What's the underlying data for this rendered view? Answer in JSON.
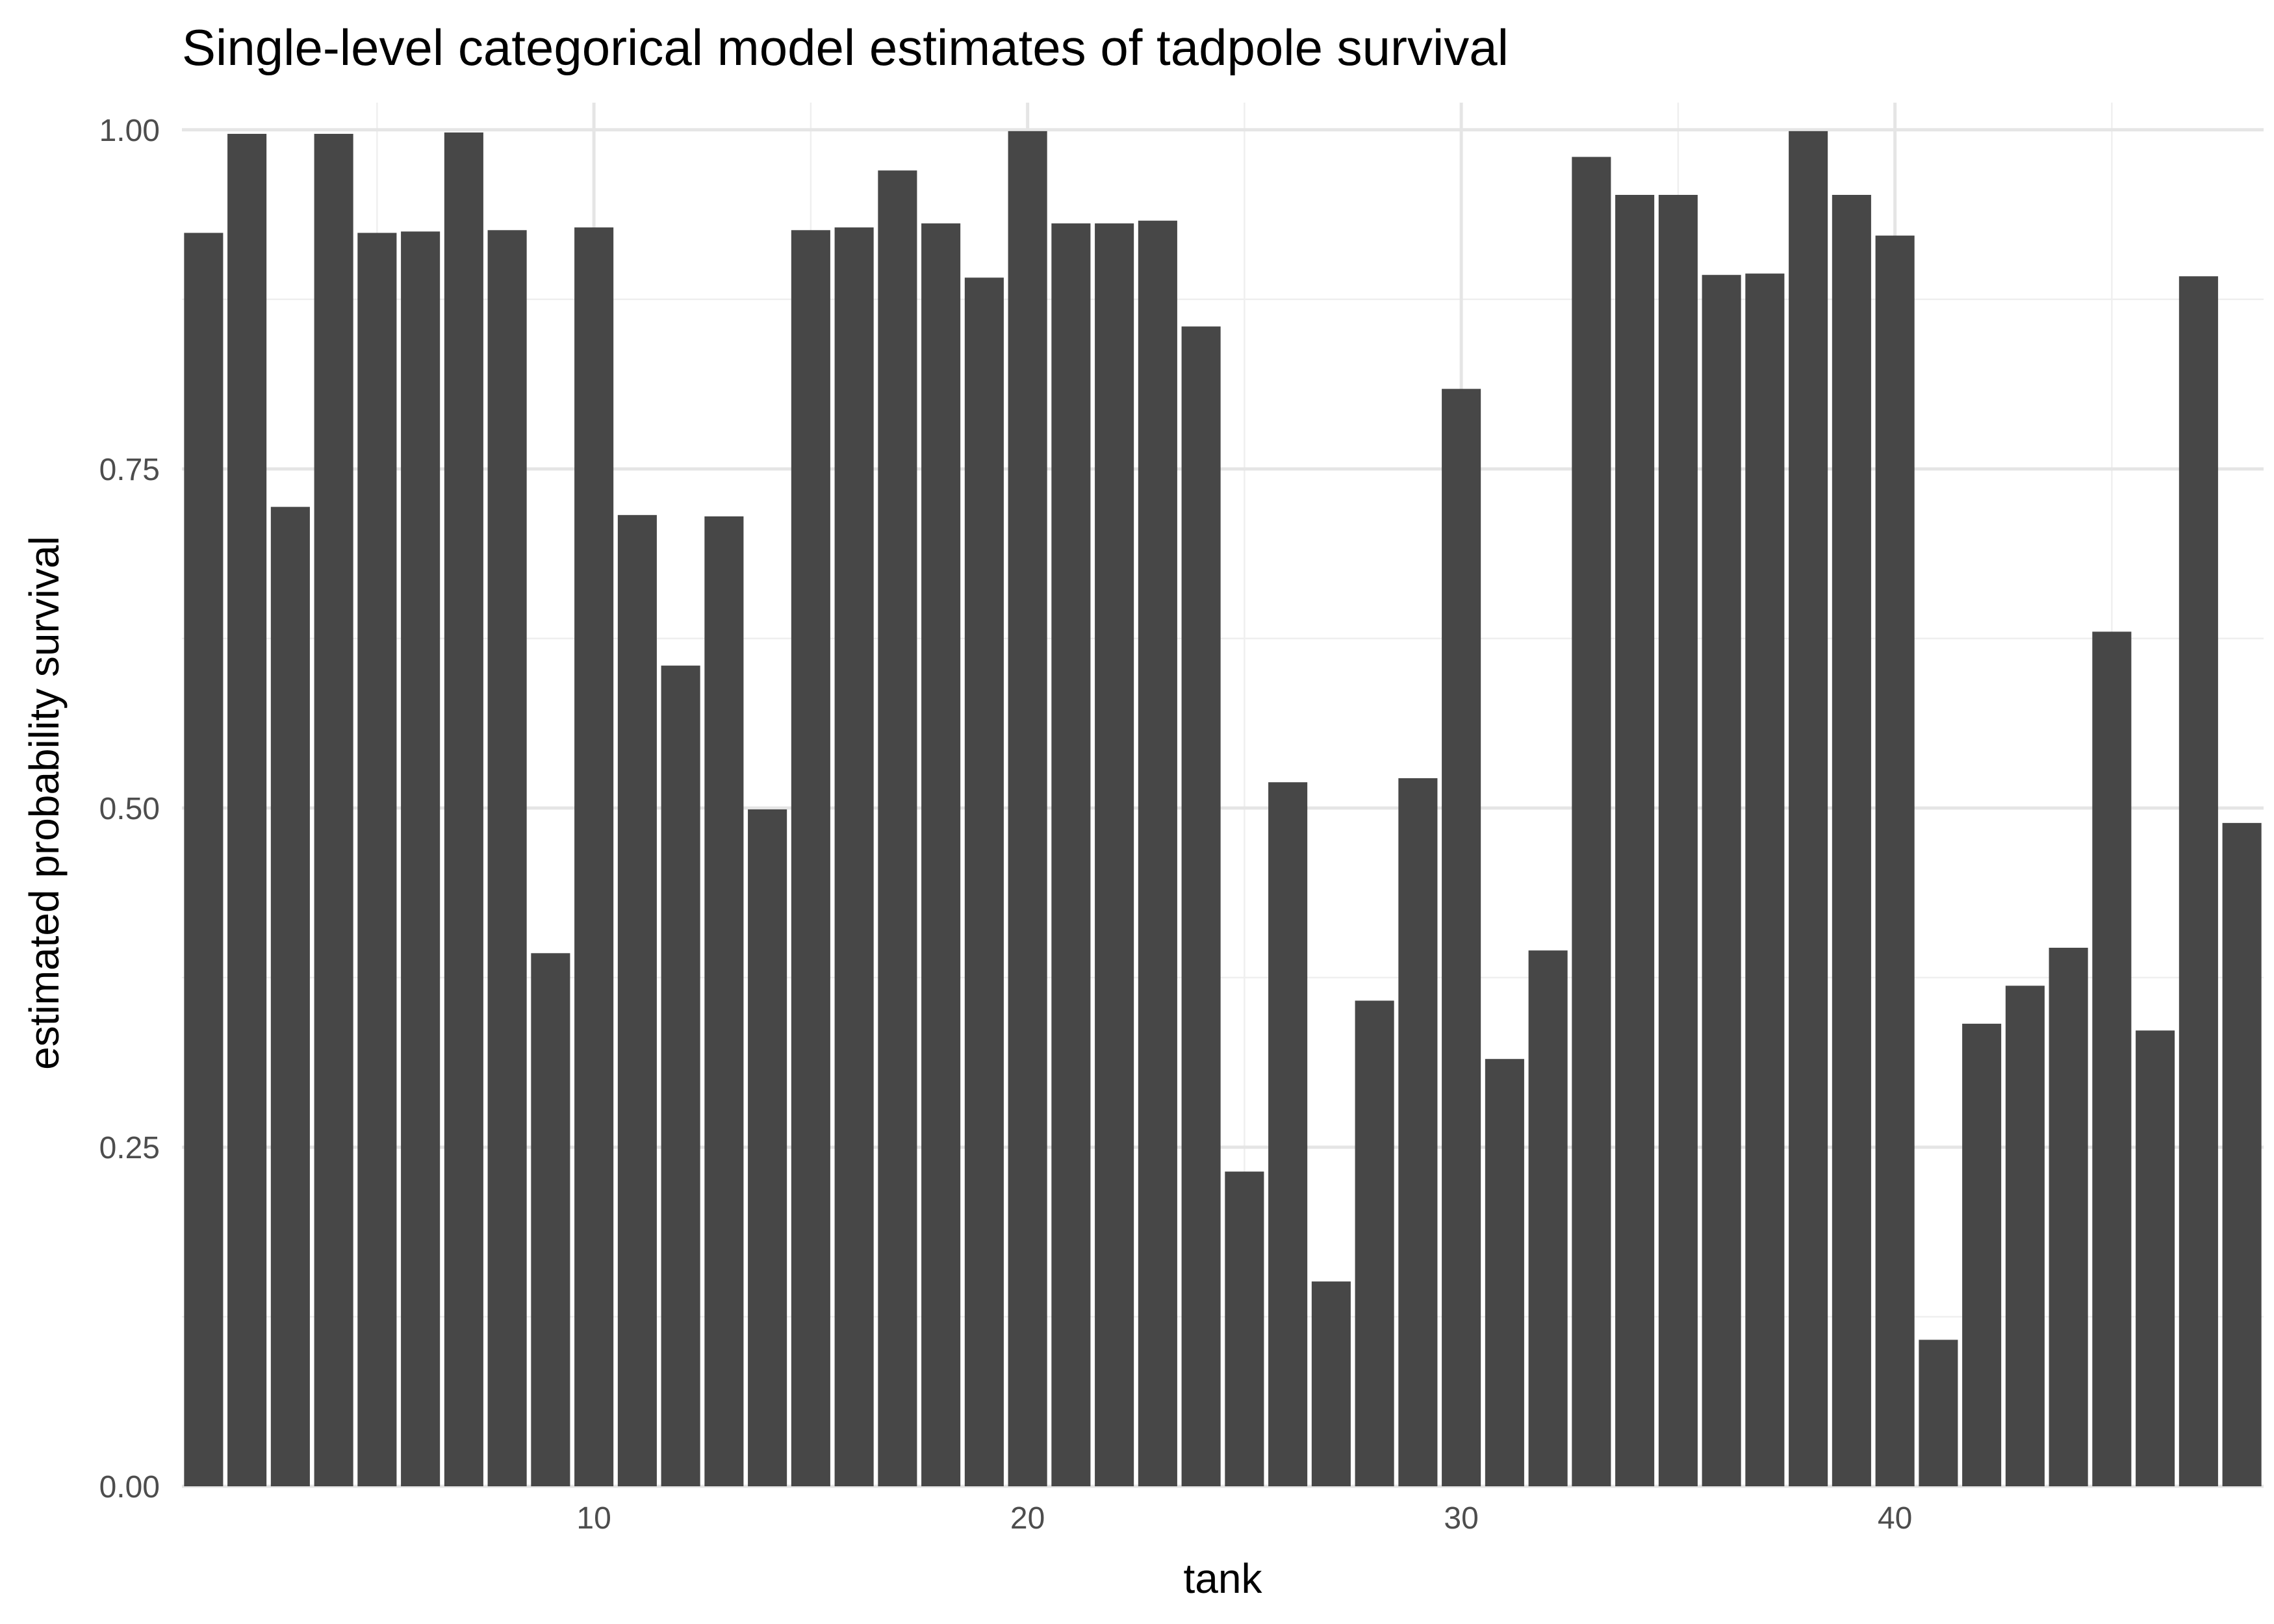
{
  "chart_data": {
    "type": "bar",
    "title": "Single-level categorical model estimates of tadpole survival",
    "xlabel": "tank",
    "ylabel": "estimated probability survival",
    "x": [
      1,
      2,
      3,
      4,
      5,
      6,
      7,
      8,
      9,
      10,
      11,
      12,
      13,
      14,
      15,
      16,
      17,
      18,
      19,
      20,
      21,
      22,
      23,
      24,
      25,
      26,
      27,
      28,
      29,
      30,
      31,
      32,
      33,
      34,
      35,
      36,
      37,
      38,
      39,
      40,
      41,
      42,
      43,
      44,
      45,
      46,
      47,
      48
    ],
    "values": [
      0.924,
      0.997,
      0.722,
      0.997,
      0.924,
      0.925,
      0.998,
      0.926,
      0.393,
      0.928,
      0.716,
      0.605,
      0.715,
      0.499,
      0.926,
      0.928,
      0.97,
      0.931,
      0.891,
      0.999,
      0.931,
      0.931,
      0.933,
      0.855,
      0.232,
      0.519,
      0.151,
      0.358,
      0.522,
      0.809,
      0.315,
      0.395,
      0.98,
      0.952,
      0.952,
      0.893,
      0.894,
      0.999,
      0.952,
      0.922,
      0.108,
      0.341,
      0.369,
      0.397,
      0.63,
      0.336,
      0.892,
      0.489
    ],
    "xlim": [
      0.5,
      48.5
    ],
    "ylim": [
      0,
      1.02
    ],
    "x_ticks": [
      "10",
      "20",
      "30",
      "40"
    ],
    "x_tick_values": [
      10,
      20,
      30,
      40
    ],
    "y_ticks": [
      "0.00",
      "0.25",
      "0.50",
      "0.75",
      "1.00"
    ],
    "y_tick_values": [
      0,
      0.25,
      0.5,
      0.75,
      1.0
    ],
    "grid": true,
    "bar_color": "#474747",
    "grid_color": "#e5e5e5"
  }
}
